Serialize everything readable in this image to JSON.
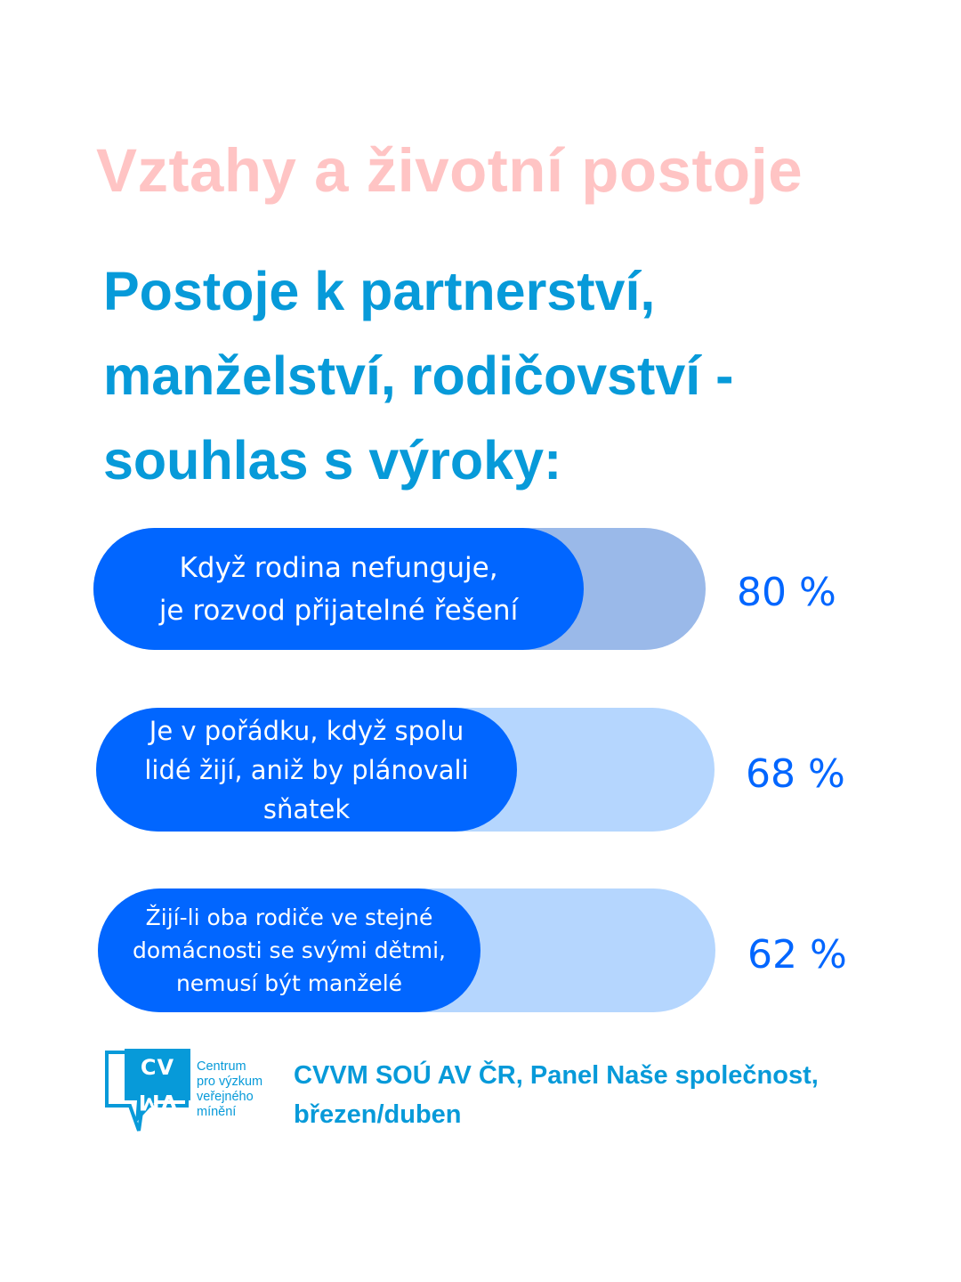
{
  "heading": "Vztahy a životní postoje",
  "subheading_lines": [
    "Postoje k partnerství,",
    "manželství, rodičovství -",
    "souhlas s výroky:"
  ],
  "colors": {
    "heading": "#ffc4c4",
    "subheading": "#079ad9",
    "pill": "#0166ff",
    "track_first": "#9ab9e9",
    "track_other": "#b5d6fe",
    "percent_text": "#0166ff"
  },
  "chart_data": {
    "type": "bar",
    "orientation": "horizontal",
    "categories": [
      "Když rodina nefunguje, je rozvod přijatelné řešení",
      "Je v pořádku, když spolu lidé žijí, aniž by plánovali sňatek",
      "Žijí-li oba rodiče ve stejné domácnosti se svými dětmi, nemusí být manželé"
    ],
    "values": [
      80,
      68,
      62
    ],
    "value_labels": [
      "80 %",
      "68 %",
      "62 %"
    ],
    "label_lines": [
      [
        "Když rodina nefunguje,",
        "je rozvod přijatelné řešení"
      ],
      [
        "Je v pořádku, když spolu",
        "lidé žijí, aniž by plánovali",
        "sňatek"
      ],
      [
        "Žijí-li oba rodiče ve stejné",
        "domácnosti se svými dětmi,",
        "nemusí být manželé"
      ]
    ],
    "unit": "%",
    "ylim": [
      0,
      100
    ]
  },
  "logo": {
    "icon": "cvvm-logo-icon",
    "mark": "CVVM",
    "text_lines": [
      "Centrum",
      "pro výzkum",
      "veřejného",
      "mínění"
    ]
  },
  "source_lines": [
    "CVVM SOÚ AV ČR, Panel Naše společnost,",
    "březen/duben"
  ]
}
